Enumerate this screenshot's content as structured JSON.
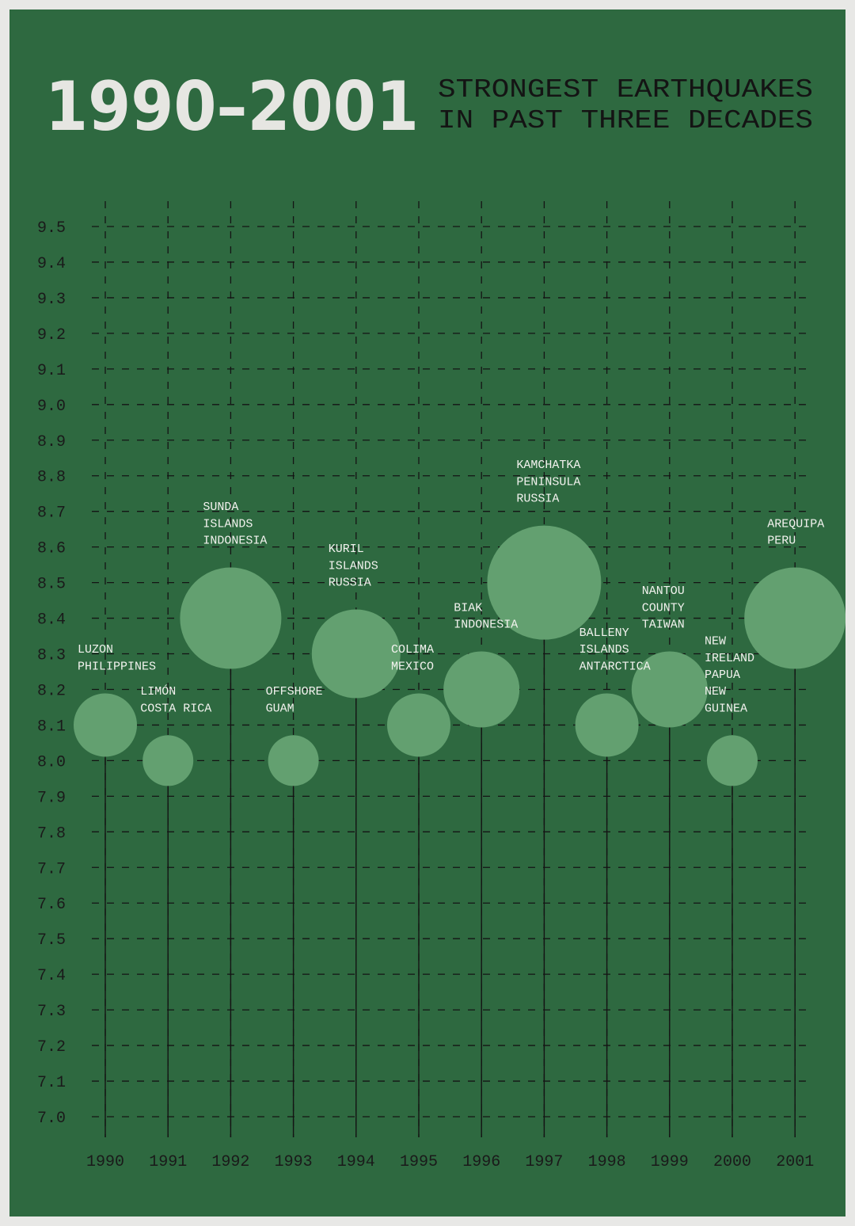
{
  "poster": {
    "title": "1990–2001",
    "subtitle_lines": [
      "STRONGEST EARTHQUAKES",
      "IN PAST THREE DECADES"
    ]
  },
  "chart_data": {
    "type": "scatter",
    "title": "1990–2001",
    "subtitle": "STRONGEST EARTHQUAKES IN PAST THREE DECADES",
    "xlabel": "",
    "ylabel": "",
    "ylim": [
      7.0,
      9.5
    ],
    "yticks": [
      "9.5",
      "9.4",
      "9.3",
      "9.2",
      "9.1",
      "9.0",
      "8.9",
      "8.8",
      "8.7",
      "8.6",
      "8.5",
      "8.4",
      "8.3",
      "8.2",
      "8.1",
      "8.0",
      "7.9",
      "7.8",
      "7.7",
      "7.6",
      "7.5",
      "7.4",
      "7.3",
      "7.2",
      "7.1",
      "7.0"
    ],
    "grid": "dashed",
    "marker": "bubble sized by magnitude on a stem",
    "colors": {
      "background": "#2e6940",
      "bubble": "#63a070",
      "title": "#e6e6e2",
      "ink": "#141414",
      "place_label": "#f2f2ee"
    },
    "points": [
      {
        "year": "1990",
        "magnitude": 8.1,
        "label": [
          "LUZON",
          "PHILIPPINES"
        ]
      },
      {
        "year": "1991",
        "magnitude": 8.0,
        "label": [
          "LIMÓN",
          "COSTA RICA"
        ]
      },
      {
        "year": "1992",
        "magnitude": 8.4,
        "label": [
          "SUNDA",
          "ISLANDS",
          "INDONESIA"
        ]
      },
      {
        "year": "1993",
        "magnitude": 8.0,
        "label": [
          "OFFSHORE",
          "GUAM"
        ]
      },
      {
        "year": "1994",
        "magnitude": 8.3,
        "label": [
          "KURIL",
          "ISLANDS",
          "RUSSIA"
        ]
      },
      {
        "year": "1995",
        "magnitude": 8.1,
        "label": [
          "COLIMA",
          "MEXICO"
        ]
      },
      {
        "year": "1996",
        "magnitude": 8.2,
        "label": [
          "BIAK",
          "INDONESIA"
        ]
      },
      {
        "year": "1997",
        "magnitude": 8.5,
        "label": [
          "KAMCHATKA",
          "PENINSULA",
          "RUSSIA"
        ]
      },
      {
        "year": "1998",
        "magnitude": 8.1,
        "label": [
          "BALLENY",
          "ISLANDS",
          "ANTARCTICA"
        ]
      },
      {
        "year": "1999",
        "magnitude": 8.2,
        "label": [
          "NANTOU",
          "COUNTY",
          "TAIWAN"
        ]
      },
      {
        "year": "2000",
        "magnitude": 8.0,
        "label": [
          "NEW",
          "IRELAND",
          "PAPUA",
          "NEW",
          "GUINEA"
        ]
      },
      {
        "year": "2001",
        "magnitude": 8.4,
        "label": [
          "AREQUIPA",
          "PERU"
        ]
      }
    ]
  }
}
